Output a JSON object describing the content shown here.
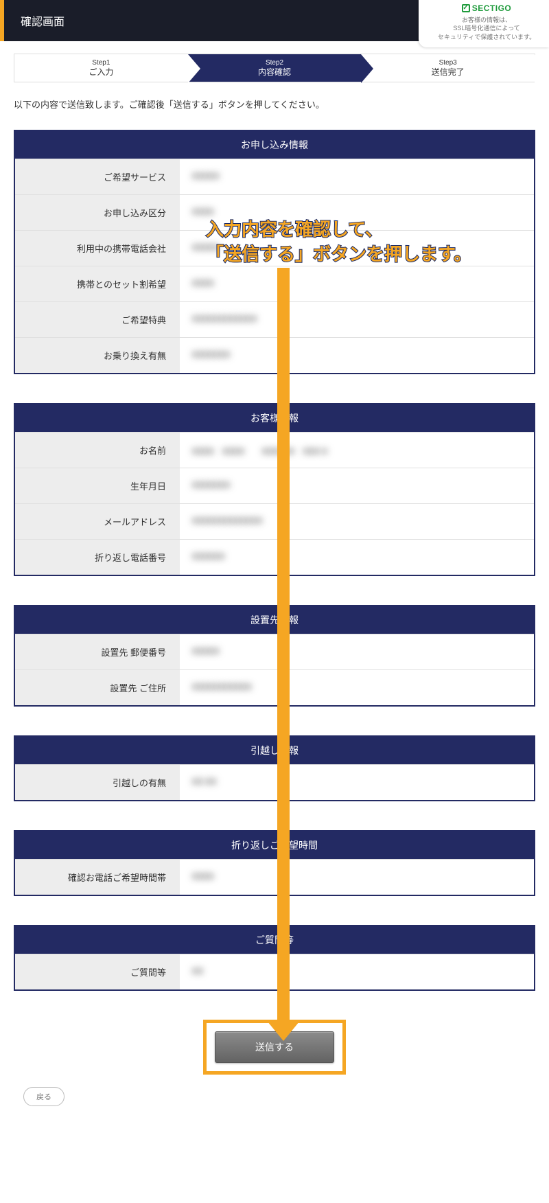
{
  "header": {
    "title": "確認画面"
  },
  "sectigo": {
    "logo": "SECTIGO",
    "line1": "お客様の情報は、",
    "line2": "SSL暗号化通信によって",
    "line3": "セキュリティで保護されています。"
  },
  "steps": [
    {
      "num": "Step1",
      "label": "ご入力"
    },
    {
      "num": "Step2",
      "label": "内容確認"
    },
    {
      "num": "Step3",
      "label": "送信完了"
    }
  ],
  "active_step_index": 1,
  "instruction": "以下の内容で送信致します。ご確認後「送信する」ボタンを押してください。",
  "sections": [
    {
      "title": "お申し込み情報",
      "rows": [
        {
          "label": "ご希望サービス",
          "value": "■■■■■"
        },
        {
          "label": "お申し込み区分",
          "value": "■■■■"
        },
        {
          "label": "利用中の携帯電話会社",
          "value": "■■■■■"
        },
        {
          "label": "携帯とのセット割希望",
          "value": "■■■■"
        },
        {
          "label": "ご希望特典",
          "value": "■■■■■■■■■■■■"
        },
        {
          "label": "お乗り換え有無",
          "value": "■■■■■■■"
        }
      ]
    },
    {
      "title": "お客様情報",
      "rows": [
        {
          "label": "お名前",
          "value": "■■■■　■■■■　　■■■■■■　■■■ ■"
        },
        {
          "label": "生年月日",
          "value": "■■■■■■■"
        },
        {
          "label": "メールアドレス",
          "value": "■■■■■■■■■■■■■"
        },
        {
          "label": "折り返し電話番号",
          "value": "■■■■■■"
        }
      ]
    },
    {
      "title": "設置先情報",
      "rows": [
        {
          "label": "設置先 郵便番号",
          "value": "■■■■■"
        },
        {
          "label": "設置先 ご住所",
          "value": "■■■■■■■■■■■"
        }
      ]
    },
    {
      "title": "引越し情報",
      "rows": [
        {
          "label": "引越しの有無",
          "value": "■■ ■■"
        }
      ]
    },
    {
      "title": "折り返しご希望時間",
      "rows": [
        {
          "label": "確認お電話ご希望時間帯",
          "value": "■■■■"
        }
      ]
    },
    {
      "title": "ご質問等",
      "rows": [
        {
          "label": "ご質問等",
          "value": "■■"
        }
      ]
    }
  ],
  "annotation": {
    "text": "入力内容を確認して、\n「送信する」ボタンを押します。",
    "text_color": "#f5a623",
    "stroke_color": "#1a2a66",
    "arrow_color": "#f5a623",
    "highlight_border_color": "#f5a623"
  },
  "buttons": {
    "submit": "送信する",
    "back": "戻る"
  },
  "colors": {
    "header_bg": "#1a1d29",
    "accent_orange": "#f5a623",
    "brand_navy": "#232a63",
    "row_label_bg": "#ededed",
    "border_gray": "#e0e0e0"
  }
}
